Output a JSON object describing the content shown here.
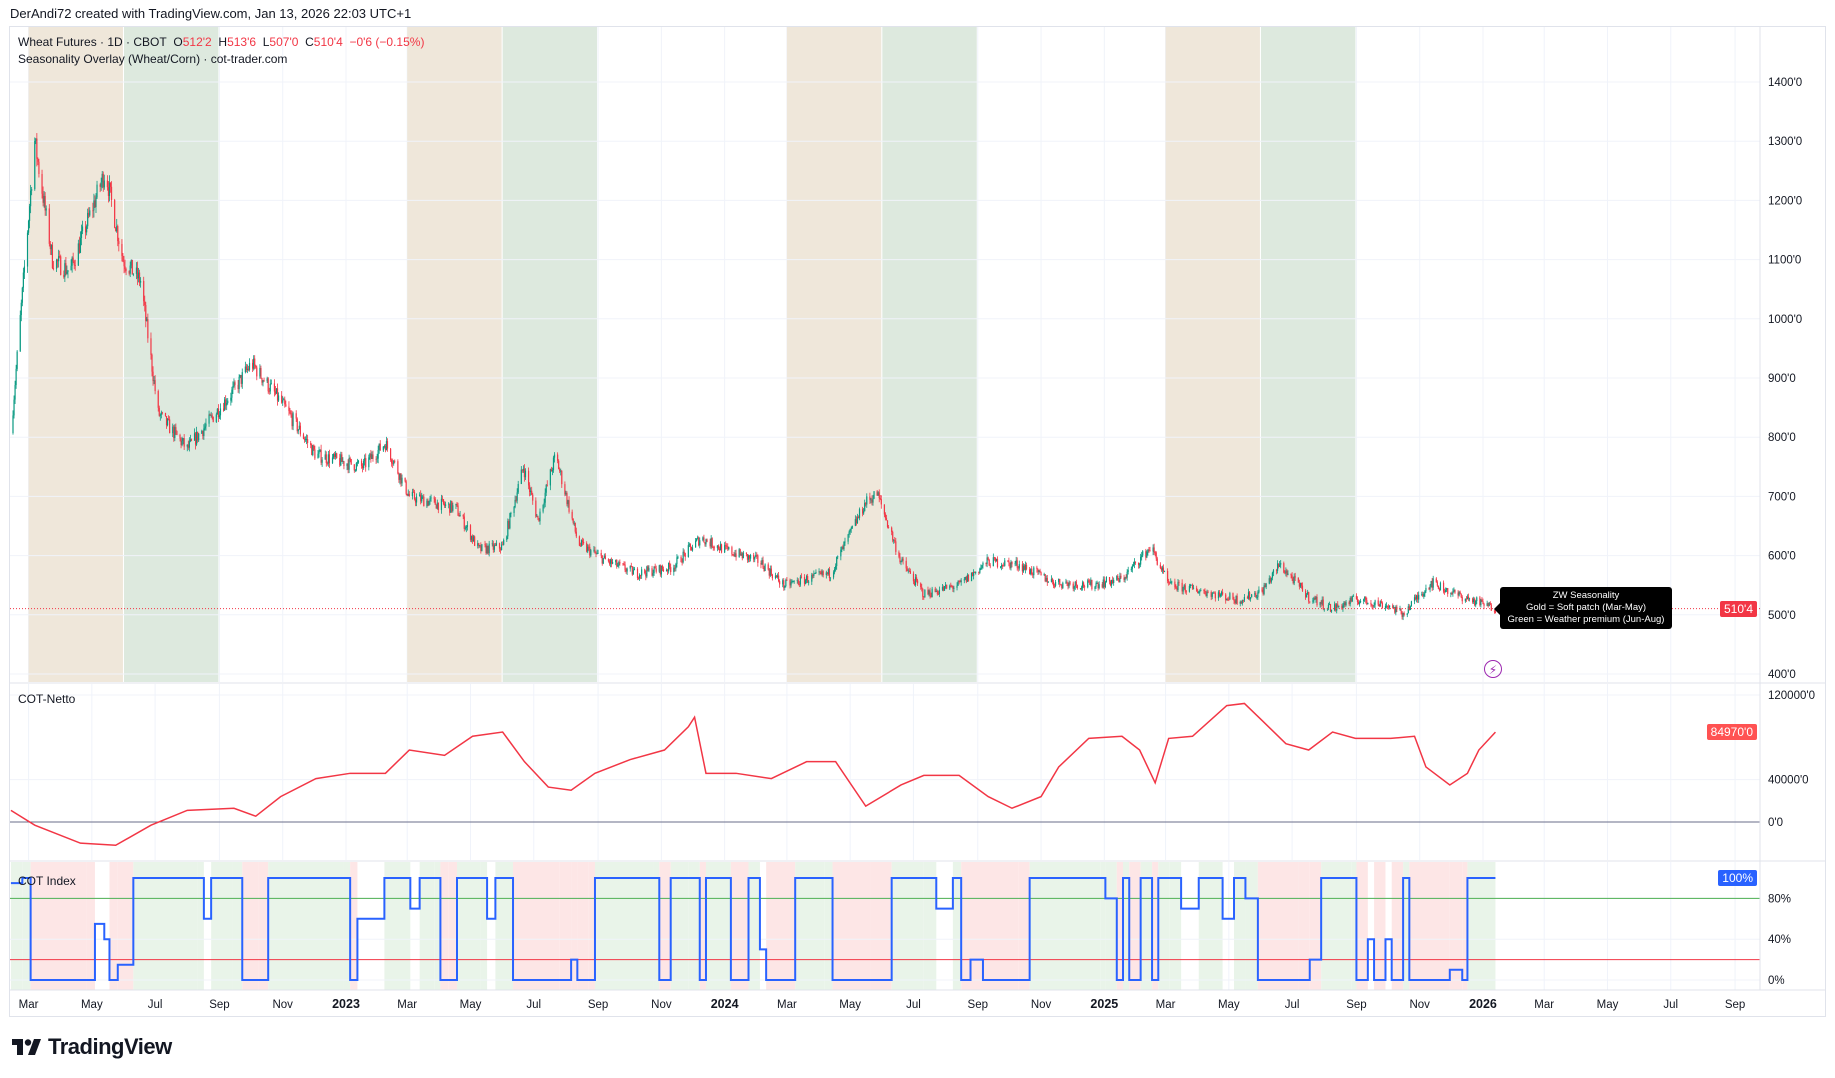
{
  "credit": "DerAndi72 created with TradingView.com, Jan 13, 2026 22:03 UTC+1",
  "legend": {
    "symbol": "Wheat Futures · 1D · CBOT",
    "o_label": "O",
    "o": "512'2",
    "h_label": "H",
    "h": "513'6",
    "l_label": "L",
    "l": "507'0",
    "c_label": "C",
    "c": "510'4",
    "change": "−0'6 (−0.15%)",
    "indicator": "Seasonality Overlay (Wheat/Corn) · cot-trader.com"
  },
  "tooltip": {
    "line1": "ZW Seasonality",
    "line2": "Gold  = Soft patch (Mar-May)",
    "line3": "Green = Weather premium (Jun-Aug)"
  },
  "logo": {
    "text": "TradingView",
    "icon": "tradingview-logo-icon"
  },
  "alert_icon": "lightning-icon",
  "colors": {
    "up": "#089981",
    "down": "#f23645",
    "netto": "#f23645",
    "index": "#2962ff",
    "gold_band": "#efe7da",
    "green_band": "#dde9de",
    "index_high": "#e9f4e9",
    "index_low": "#fde6e6",
    "line80": "#4caf50",
    "line20": "#f23645",
    "zero": "#6a6d8a"
  },
  "chart_data": [
    {
      "type": "candlestick",
      "name": "Wheat Futures",
      "yaxis_ticks": [
        "400'0",
        "500'0",
        "600'0",
        "700'0",
        "800'0",
        "900'0",
        "1000'0",
        "1100'0",
        "1200'0",
        "1300'0",
        "1400'0"
      ],
      "ytick_values": [
        400,
        500,
        600,
        700,
        800,
        900,
        1000,
        1100,
        1200,
        1300,
        1400
      ],
      "ylim": [
        390,
        1480
      ],
      "last_price": 510.5,
      "last_price_label": "510'4",
      "seasonal_bands": [
        {
          "kind": "gold",
          "from": "2022-03-01",
          "to": "2022-05-31"
        },
        {
          "kind": "green",
          "from": "2022-06-01",
          "to": "2022-08-31"
        },
        {
          "kind": "gold",
          "from": "2023-03-01",
          "to": "2023-05-31"
        },
        {
          "kind": "green",
          "from": "2023-06-01",
          "to": "2023-08-31"
        },
        {
          "kind": "gold",
          "from": "2024-03-01",
          "to": "2024-05-31"
        },
        {
          "kind": "green",
          "from": "2024-06-01",
          "to": "2024-08-31"
        },
        {
          "kind": "gold",
          "from": "2025-03-01",
          "to": "2025-05-31"
        },
        {
          "kind": "green",
          "from": "2025-06-01",
          "to": "2025-08-31"
        }
      ],
      "close": [
        [
          "2022-02-12",
          807
        ],
        [
          "2022-03-07",
          1300
        ],
        [
          "2022-03-24",
          1100
        ],
        [
          "2022-04-10",
          1080
        ],
        [
          "2022-05-14",
          1250
        ],
        [
          "2022-05-31",
          1100
        ],
        [
          "2022-06-17",
          1064
        ],
        [
          "2022-07-04",
          840
        ],
        [
          "2022-08-01",
          780
        ],
        [
          "2022-09-15",
          880
        ],
        [
          "2022-10-02",
          925
        ],
        [
          "2022-10-30",
          860
        ],
        [
          "2022-12-03",
          770
        ],
        [
          "2023-01-17",
          750
        ],
        [
          "2023-02-08",
          790
        ],
        [
          "2023-03-03",
          700
        ],
        [
          "2023-03-25",
          690
        ],
        [
          "2023-04-17",
          680
        ],
        [
          "2023-05-09",
          610
        ],
        [
          "2023-06-01",
          615
        ],
        [
          "2023-06-21",
          750
        ],
        [
          "2023-07-05",
          660
        ],
        [
          "2023-07-22",
          770
        ],
        [
          "2023-08-13",
          620
        ],
        [
          "2023-09-10",
          590
        ],
        [
          "2023-10-08",
          570
        ],
        [
          "2023-11-11",
          580
        ],
        [
          "2023-12-09",
          630
        ],
        [
          "2024-01-01",
          610
        ],
        [
          "2024-02-04",
          590
        ],
        [
          "2024-02-27",
          550
        ],
        [
          "2024-03-20",
          560
        ],
        [
          "2024-04-12",
          570
        ],
        [
          "2024-05-16",
          690
        ],
        [
          "2024-05-27",
          705
        ],
        [
          "2024-06-19",
          590
        ],
        [
          "2024-07-11",
          535
        ],
        [
          "2024-08-14",
          550
        ],
        [
          "2024-09-11",
          590
        ],
        [
          "2024-10-10",
          585
        ],
        [
          "2024-11-13",
          555
        ],
        [
          "2024-12-17",
          550
        ],
        [
          "2025-01-18",
          560
        ],
        [
          "2025-02-15",
          615
        ],
        [
          "2025-03-04",
          550
        ],
        [
          "2025-04-07",
          540
        ],
        [
          "2025-05-11",
          525
        ],
        [
          "2025-06-02",
          540
        ],
        [
          "2025-06-19",
          585
        ],
        [
          "2025-07-17",
          530
        ],
        [
          "2025-08-09",
          510
        ],
        [
          "2025-08-31",
          526
        ],
        [
          "2025-10-04",
          515
        ],
        [
          "2025-10-15",
          500
        ],
        [
          "2025-11-12",
          555
        ],
        [
          "2025-12-05",
          535
        ],
        [
          "2026-01-13",
          510.5
        ]
      ]
    },
    {
      "type": "line",
      "name": "COT-Netto",
      "yaxis_ticks": [
        "0'0",
        "40000'0",
        "120000'0"
      ],
      "ytick_values": [
        0,
        40000,
        120000
      ],
      "last_value": 84970,
      "last_value_label": "84970'0",
      "values": [
        [
          "2022-02-12",
          11000
        ],
        [
          "2022-03-07",
          -3000
        ],
        [
          "2022-04-20",
          -20000
        ],
        [
          "2022-05-24",
          -22000
        ],
        [
          "2022-06-27",
          -3000
        ],
        [
          "2022-08-01",
          11000
        ],
        [
          "2022-09-15",
          13000
        ],
        [
          "2022-10-06",
          5500
        ],
        [
          "2022-10-30",
          24000
        ],
        [
          "2022-12-03",
          41000
        ],
        [
          "2023-01-05",
          46000
        ],
        [
          "2023-02-08",
          46000
        ],
        [
          "2023-03-03",
          68000
        ],
        [
          "2023-04-06",
          63000
        ],
        [
          "2023-05-03",
          81000
        ],
        [
          "2023-06-01",
          85000
        ],
        [
          "2023-06-22",
          57000
        ],
        [
          "2023-07-15",
          33000
        ],
        [
          "2023-08-06",
          30000
        ],
        [
          "2023-08-29",
          46000
        ],
        [
          "2023-10-02",
          59000
        ],
        [
          "2023-11-04",
          68000
        ],
        [
          "2023-11-27",
          90000
        ],
        [
          "2023-12-03",
          99000
        ],
        [
          "2023-12-14",
          46000
        ],
        [
          "2024-01-12",
          46000
        ],
        [
          "2024-02-15",
          41000
        ],
        [
          "2024-03-20",
          57000
        ],
        [
          "2024-04-17",
          57000
        ],
        [
          "2024-05-16",
          15000
        ],
        [
          "2024-06-19",
          35000
        ],
        [
          "2024-07-11",
          44000
        ],
        [
          "2024-08-14",
          44000
        ],
        [
          "2024-09-11",
          24000
        ],
        [
          "2024-10-04",
          13000
        ],
        [
          "2024-11-01",
          24000
        ],
        [
          "2024-11-18",
          52000
        ],
        [
          "2024-12-17",
          79000
        ],
        [
          "2025-01-18",
          81000
        ],
        [
          "2025-02-04",
          68000
        ],
        [
          "2025-02-19",
          37000
        ],
        [
          "2025-03-04",
          79000
        ],
        [
          "2025-03-27",
          81000
        ],
        [
          "2025-04-29",
          110000
        ],
        [
          "2025-05-16",
          112000
        ],
        [
          "2025-06-02",
          96000
        ],
        [
          "2025-06-25",
          74000
        ],
        [
          "2025-07-17",
          68000
        ],
        [
          "2025-08-09",
          85000
        ],
        [
          "2025-08-31",
          79000
        ],
        [
          "2025-10-04",
          79000
        ],
        [
          "2025-10-27",
          81000
        ],
        [
          "2025-11-07",
          52000
        ],
        [
          "2025-11-30",
          35000
        ],
        [
          "2025-12-17",
          46000
        ],
        [
          "2025-12-28",
          68000
        ],
        [
          "2026-01-13",
          84970
        ]
      ]
    },
    {
      "type": "line",
      "name": "COT Index",
      "yaxis_ticks": [
        "0%",
        "40%",
        "80%"
      ],
      "ytick_values": [
        0,
        40,
        80
      ],
      "levels": [
        80,
        20
      ],
      "last_value": 100,
      "last_value_label": "100%",
      "values": [
        [
          "2022-02-12",
          95
        ],
        [
          "2022-02-23",
          100
        ],
        [
          "2022-03-03",
          0
        ],
        [
          "2022-04-26",
          0
        ],
        [
          "2022-05-04",
          55
        ],
        [
          "2022-05-13",
          40
        ],
        [
          "2022-05-18",
          0
        ],
        [
          "2022-05-26",
          15
        ],
        [
          "2022-06-10",
          100
        ],
        [
          "2022-08-11",
          100
        ],
        [
          "2022-08-17",
          60
        ],
        [
          "2022-08-24",
          100
        ],
        [
          "2022-09-14",
          100
        ],
        [
          "2022-09-23",
          0
        ],
        [
          "2022-10-09",
          0
        ],
        [
          "2022-10-18",
          100
        ],
        [
          "2022-12-30",
          100
        ],
        [
          "2023-01-05",
          0
        ],
        [
          "2023-01-12",
          60
        ],
        [
          "2023-02-02",
          60
        ],
        [
          "2023-02-07",
          100
        ],
        [
          "2023-02-24",
          100
        ],
        [
          "2023-03-04",
          70
        ],
        [
          "2023-03-13",
          100
        ],
        [
          "2023-03-27",
          100
        ],
        [
          "2023-04-02",
          0
        ],
        [
          "2023-04-10",
          0
        ],
        [
          "2023-04-18",
          100
        ],
        [
          "2023-05-11",
          100
        ],
        [
          "2023-05-17",
          60
        ],
        [
          "2023-05-25",
          100
        ],
        [
          "2023-06-11",
          0
        ],
        [
          "2023-07-26",
          0
        ],
        [
          "2023-08-06",
          20
        ],
        [
          "2023-08-12",
          0
        ],
        [
          "2023-08-23",
          0
        ],
        [
          "2023-08-29",
          100
        ],
        [
          "2023-10-24",
          100
        ],
        [
          "2023-10-30",
          0
        ],
        [
          "2023-11-10",
          100
        ],
        [
          "2023-11-27",
          100
        ],
        [
          "2023-12-08",
          0
        ],
        [
          "2023-12-14",
          100
        ],
        [
          "2024-01-07",
          0
        ],
        [
          "2024-01-24",
          100
        ],
        [
          "2024-02-04",
          30
        ],
        [
          "2024-02-10",
          0
        ],
        [
          "2024-03-03",
          0
        ],
        [
          "2024-03-09",
          100
        ],
        [
          "2024-04-06",
          100
        ],
        [
          "2024-04-14",
          0
        ],
        [
          "2024-05-21",
          0
        ],
        [
          "2024-06-10",
          100
        ],
        [
          "2024-07-11",
          100
        ],
        [
          "2024-07-23",
          70
        ],
        [
          "2024-08-08",
          100
        ],
        [
          "2024-08-16",
          0
        ],
        [
          "2024-08-25",
          20
        ],
        [
          "2024-09-06",
          0
        ],
        [
          "2024-10-10",
          0
        ],
        [
          "2024-10-21",
          100
        ],
        [
          "2024-12-28",
          100
        ],
        [
          "2025-01-02",
          80
        ],
        [
          "2025-01-13",
          0
        ],
        [
          "2025-01-19",
          100
        ],
        [
          "2025-01-25",
          0
        ],
        [
          "2025-02-05",
          100
        ],
        [
          "2025-02-16",
          0
        ],
        [
          "2025-02-22",
          100
        ],
        [
          "2025-03-05",
          100
        ],
        [
          "2025-03-16",
          70
        ],
        [
          "2025-04-02",
          100
        ],
        [
          "2025-04-25",
          60
        ],
        [
          "2025-05-06",
          100
        ],
        [
          "2025-05-17",
          80
        ],
        [
          "2025-05-29",
          0
        ],
        [
          "2025-07-07",
          0
        ],
        [
          "2025-07-18",
          20
        ],
        [
          "2025-07-29",
          100
        ],
        [
          "2025-08-27",
          100
        ],
        [
          "2025-09-01",
          0
        ],
        [
          "2025-09-12",
          40
        ],
        [
          "2025-09-18",
          0
        ],
        [
          "2025-09-29",
          40
        ],
        [
          "2025-10-05",
          0
        ],
        [
          "2025-10-16",
          100
        ],
        [
          "2025-10-22",
          0
        ],
        [
          "2025-11-30",
          10
        ],
        [
          "2025-12-12",
          0
        ],
        [
          "2025-12-17",
          100
        ],
        [
          "2026-01-13",
          100
        ]
      ]
    }
  ],
  "time_axis": [
    [
      "Mar",
      "2022-03-01"
    ],
    [
      "May",
      "2022-05-01"
    ],
    [
      "Jul",
      "2022-07-01"
    ],
    [
      "Sep",
      "2022-09-01"
    ],
    [
      "Nov",
      "2022-11-01"
    ],
    [
      "2023",
      "2023-01-01"
    ],
    [
      "Mar",
      "2023-03-01"
    ],
    [
      "May",
      "2023-05-01"
    ],
    [
      "Jul",
      "2023-07-01"
    ],
    [
      "Sep",
      "2023-09-01"
    ],
    [
      "Nov",
      "2023-11-01"
    ],
    [
      "2024",
      "2024-01-01"
    ],
    [
      "Mar",
      "2024-03-01"
    ],
    [
      "May",
      "2024-05-01"
    ],
    [
      "Jul",
      "2024-07-01"
    ],
    [
      "Sep",
      "2024-09-01"
    ],
    [
      "Nov",
      "2024-11-01"
    ],
    [
      "2025",
      "2025-01-01"
    ],
    [
      "Mar",
      "2025-03-01"
    ],
    [
      "May",
      "2025-05-01"
    ],
    [
      "Jul",
      "2025-07-01"
    ],
    [
      "Sep",
      "2025-09-01"
    ],
    [
      "Nov",
      "2025-11-01"
    ],
    [
      "2026",
      "2026-01-01"
    ],
    [
      "Mar",
      "2026-03-01"
    ],
    [
      "May",
      "2026-05-01"
    ],
    [
      "Jul",
      "2026-07-01"
    ],
    [
      "Sep",
      "2026-09-01"
    ]
  ]
}
